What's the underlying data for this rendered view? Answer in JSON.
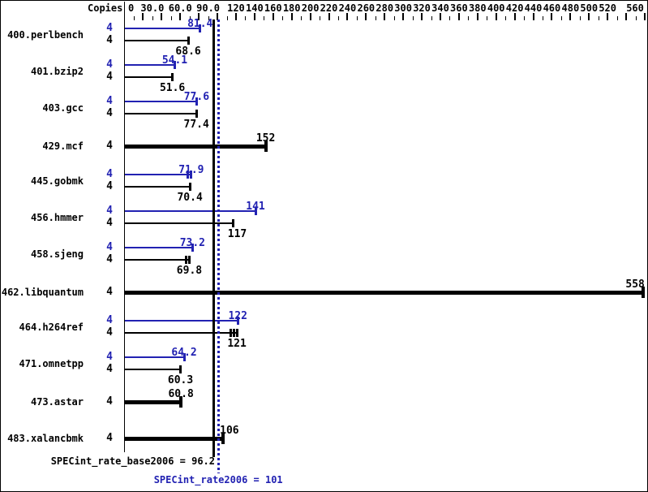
{
  "chart_data": {
    "type": "bar",
    "orientation": "horizontal",
    "title": "",
    "xlabel": "",
    "ylabel": "",
    "copies_header": "Copies",
    "xlim": [
      0,
      560
    ],
    "minor_tick_step": 10,
    "major_tick_step": 20,
    "grid": false,
    "axis_labels": [
      {
        "v": 0,
        "text": "0"
      },
      {
        "v": 30,
        "text": "30.0"
      },
      {
        "v": 60,
        "text": "60.0"
      },
      {
        "v": 90,
        "text": "90.0"
      },
      {
        "v": 120,
        "text": "120"
      },
      {
        "v": 140,
        "text": "140"
      },
      {
        "v": 160,
        "text": "160"
      },
      {
        "v": 180,
        "text": "180"
      },
      {
        "v": 200,
        "text": "200"
      },
      {
        "v": 220,
        "text": "220"
      },
      {
        "v": 240,
        "text": "240"
      },
      {
        "v": 260,
        "text": "260"
      },
      {
        "v": 280,
        "text": "280"
      },
      {
        "v": 300,
        "text": "300"
      },
      {
        "v": 320,
        "text": "320"
      },
      {
        "v": 340,
        "text": "340"
      },
      {
        "v": 360,
        "text": "360"
      },
      {
        "v": 380,
        "text": "380"
      },
      {
        "v": 400,
        "text": "400"
      },
      {
        "v": 420,
        "text": "420"
      },
      {
        "v": 440,
        "text": "440"
      },
      {
        "v": 460,
        "text": "460"
      },
      {
        "v": 480,
        "text": "480"
      },
      {
        "v": 500,
        "text": "500"
      },
      {
        "v": 520,
        "text": "520"
      },
      {
        "v": 560,
        "text": "560"
      }
    ],
    "benchmarks": [
      {
        "name": "400.perlbench",
        "copies": 4,
        "single": false,
        "peak": {
          "value": 81.4,
          "label": "81.4"
        },
        "base": {
          "value": 68.6,
          "label": "68.6"
        }
      },
      {
        "name": "401.bzip2",
        "copies": 4,
        "single": false,
        "peak": {
          "value": 54.1,
          "label": "54.1"
        },
        "base": {
          "value": 51.6,
          "label": "51.6"
        }
      },
      {
        "name": "403.gcc",
        "copies": 4,
        "single": false,
        "peak": {
          "value": 77.6,
          "label": "77.6"
        },
        "base": {
          "value": 77.4,
          "label": "77.4"
        }
      },
      {
        "name": "429.mcf",
        "copies": 4,
        "single": true,
        "base": {
          "value": 152,
          "label": "152"
        }
      },
      {
        "name": "445.gobmk",
        "copies": 4,
        "single": false,
        "peak": {
          "value": 71.9,
          "label": "71.9",
          "cap_ticks": 2
        },
        "base": {
          "value": 70.4,
          "label": "70.4"
        }
      },
      {
        "name": "456.hmmer",
        "copies": 4,
        "single": false,
        "peak": {
          "value": 141,
          "label": "141"
        },
        "base": {
          "value": 117,
          "label": "117",
          "label_dx": 5
        }
      },
      {
        "name": "458.sjeng",
        "copies": 4,
        "single": false,
        "peak": {
          "value": 73.2,
          "label": "73.2"
        },
        "base": {
          "value": 69.8,
          "label": "69.8",
          "cap_ticks": 2
        }
      },
      {
        "name": "462.libquantum",
        "copies": 4,
        "single": true,
        "base": {
          "value": 558,
          "label": "558"
        }
      },
      {
        "name": "464.h264ref",
        "copies": 4,
        "single": false,
        "peak": {
          "value": 122,
          "label": "122"
        },
        "base": {
          "value": 121,
          "label": "121",
          "cap_ticks": 3
        }
      },
      {
        "name": "471.omnetpp",
        "copies": 4,
        "single": false,
        "peak": {
          "value": 64.2,
          "label": "64.2"
        },
        "base": {
          "value": 60.3,
          "label": "60.3"
        }
      },
      {
        "name": "473.astar",
        "copies": 4,
        "single": true,
        "base": {
          "value": 60.8,
          "label": "60.8"
        }
      },
      {
        "name": "483.xalancbmk",
        "copies": 4,
        "single": true,
        "base": {
          "value": 106,
          "label": "106",
          "label_dx": 8
        }
      }
    ],
    "means": {
      "base_label": "SPECint_rate_base2006 = 96.2",
      "base_value": 96.2,
      "peak_label": "SPECint_rate2006 = 101",
      "peak_value": 101
    },
    "colors": {
      "peak": "#2222b2",
      "base": "#000000",
      "background": "#ffffff"
    }
  }
}
